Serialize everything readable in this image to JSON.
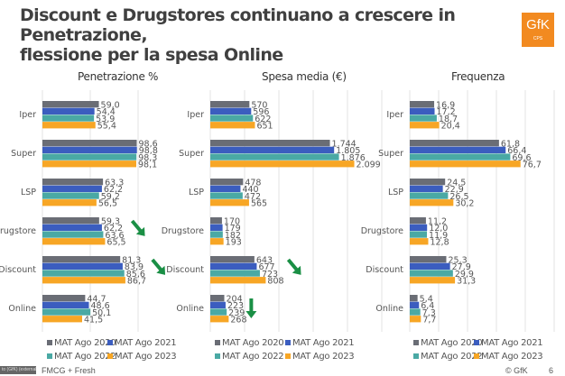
{
  "title_line1": "Discount e Drugstores continuano a crescere in Penetrazione,",
  "title_line2": "flessione per la spesa Online",
  "logo": {
    "text": "GfK",
    "sub": "CPS"
  },
  "colors": {
    "MAT Ago 2020": "#6a6d75",
    "MAT Ago 2021": "#3b5dbf",
    "MAT Ago 2022": "#4aa9a4",
    "MAT Ago 2023": "#f7a625",
    "arrow": "#1a8f45"
  },
  "chart_data": [
    {
      "type": "bar",
      "title": "Penetrazione %",
      "categories": [
        "Iper",
        "Super",
        "LSP",
        "Drugstore",
        "Discount",
        "Online"
      ],
      "xlim": [
        0,
        100
      ],
      "series": [
        {
          "name": "MAT Ago 2020",
          "values": [
            59.0,
            98.6,
            63.3,
            59.3,
            81.3,
            44.7
          ]
        },
        {
          "name": "MAT Ago 2021",
          "values": [
            54.4,
            98.8,
            62.2,
            62.2,
            83.9,
            48.6
          ]
        },
        {
          "name": "MAT Ago 2022",
          "values": [
            53.9,
            98.3,
            59.2,
            63.6,
            85.6,
            50.1
          ]
        },
        {
          "name": "MAT Ago 2023",
          "values": [
            55.4,
            98.1,
            56.5,
            65.5,
            86.7,
            41.5
          ]
        }
      ],
      "labels": [
        [
          "59,0",
          "54,4",
          "53,9",
          "55,4"
        ],
        [
          "98,6",
          "98,8",
          "98,3",
          "98,1"
        ],
        [
          "63,3",
          "62,2",
          "59,2",
          "56,5"
        ],
        [
          "59,3",
          "62,2",
          "63,6",
          "65,5"
        ],
        [
          "81,3",
          "83,9",
          "85,6",
          "86,7"
        ],
        [
          "44,7",
          "48,6",
          "50,1",
          "41,5"
        ]
      ],
      "arrows": [
        "Drugstore",
        "Discount"
      ],
      "legend": "bottom"
    },
    {
      "type": "bar",
      "title": "Spesa media (€)",
      "categories": [
        "Iper",
        "Super",
        "LSP",
        "Drugstore",
        "Discount",
        "Online"
      ],
      "xlim": [
        0,
        2500
      ],
      "series": [
        {
          "name": "MAT Ago 2020",
          "values": [
            570,
            1744,
            478,
            170,
            643,
            204
          ]
        },
        {
          "name": "MAT Ago 2021",
          "values": [
            596,
            1805,
            440,
            179,
            677,
            223
          ]
        },
        {
          "name": "MAT Ago 2022",
          "values": [
            622,
            1876,
            472,
            182,
            723,
            239
          ]
        },
        {
          "name": "MAT Ago 2023",
          "values": [
            651,
            2099,
            565,
            193,
            808,
            268
          ]
        }
      ],
      "labels": [
        [
          "570",
          "596",
          "622",
          "651"
        ],
        [
          "1.744",
          "1.805",
          "1.876",
          "2.099"
        ],
        [
          "478",
          "440",
          "472",
          "565"
        ],
        [
          "170",
          "179",
          "182",
          "193"
        ],
        [
          "643",
          "677",
          "723",
          "808"
        ],
        [
          "204",
          "223",
          "239",
          "268"
        ]
      ],
      "arrows": [
        "Discount",
        "Online"
      ],
      "legend": "bottom"
    },
    {
      "type": "bar",
      "title": "Frequenza",
      "categories": [
        "Iper",
        "Super",
        "LSP",
        "Drugstore",
        "Discount",
        "Online"
      ],
      "xlim": [
        0,
        100
      ],
      "series": [
        {
          "name": "MAT Ago 2020",
          "values": [
            16.9,
            61.8,
            24.5,
            11.2,
            25.3,
            5.4
          ]
        },
        {
          "name": "MAT Ago 2021",
          "values": [
            17.2,
            66.4,
            22.9,
            12.0,
            27.9,
            6.4
          ]
        },
        {
          "name": "MAT Ago 2022",
          "values": [
            18.7,
            69.6,
            26.5,
            11.9,
            29.9,
            7.3
          ]
        },
        {
          "name": "MAT Ago 2023",
          "values": [
            20.4,
            76.7,
            30.2,
            12.8,
            31.3,
            7.7
          ]
        }
      ],
      "labels": [
        [
          "16,9",
          "17,2",
          "18,7",
          "20,4"
        ],
        [
          "61,8",
          "66,4",
          "69,6",
          "76,7"
        ],
        [
          "24,5",
          "22,9",
          "26,5",
          "30,2"
        ],
        [
          "11,2",
          "12,0",
          "11,9",
          "12,8"
        ],
        [
          "25,3",
          "27,9",
          "29,9",
          "31,3"
        ],
        [
          "5,4",
          "6,4",
          "7,3",
          "7,7"
        ]
      ],
      "arrows": [],
      "legend": "bottom"
    }
  ],
  "footer": {
    "left": "FMCG + Fresh",
    "tag": "to (GfK) (external)",
    "copyright": "© GfK",
    "page": "6"
  }
}
